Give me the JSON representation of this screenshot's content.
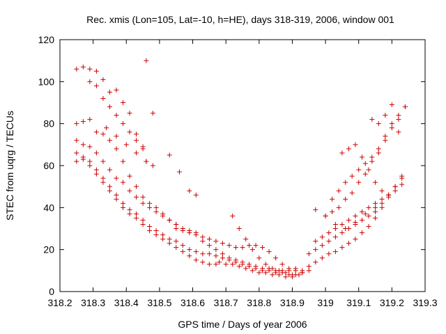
{
  "chart_data": {
    "type": "scatter",
    "title": "Rec. xmis (Lon=105, Lat=-10, h=HE), days 318-319, 2006, window 001",
    "xlabel": "GPS time / Days of year 2006",
    "ylabel": "STEC from uqrg / TECUs",
    "xlim": [
      318.2,
      319.3
    ],
    "ylim": [
      0,
      120
    ],
    "x_ticks": [
      "318.2",
      "318.3",
      "318.4",
      "318.5",
      "318.6",
      "318.7",
      "318.8",
      "318.9",
      "319",
      "319.1",
      "319.2",
      "319.3"
    ],
    "y_ticks": [
      "0",
      "20",
      "40",
      "60",
      "80",
      "100",
      "120"
    ],
    "grid": false,
    "marker": "+",
    "color": "#cc0000",
    "series": [
      {
        "x": [
          318.25,
          318.27,
          318.29,
          318.31,
          318.33,
          318.35,
          318.37,
          318.39,
          318.41,
          318.43,
          318.45,
          318.46,
          318.48
        ],
        "y": [
          106,
          107,
          106,
          105,
          101,
          95,
          96,
          90,
          85,
          75,
          69,
          62,
          60
        ]
      },
      {
        "x": [
          318.25,
          318.27,
          318.29,
          318.31,
          318.33,
          318.35,
          318.37,
          318.39,
          318.41,
          318.43,
          318.45,
          318.47,
          318.49,
          318.51,
          318.53,
          318.55
        ],
        "y": [
          80,
          81,
          82,
          76,
          75,
          72,
          68,
          62,
          55,
          50,
          45,
          42,
          40,
          37,
          34,
          32
        ]
      },
      {
        "x": [
          318.25,
          318.27,
          318.29,
          318.31,
          318.33,
          318.35,
          318.37,
          318.39,
          318.41,
          318.43,
          318.45,
          318.47,
          318.49,
          318.51,
          318.53,
          318.55,
          318.57,
          318.59,
          318.61
        ],
        "y": [
          72,
          70,
          69,
          66,
          62,
          58,
          54,
          52,
          48,
          45,
          42,
          40,
          38,
          36,
          34,
          32,
          30,
          29,
          28
        ]
      },
      {
        "x": [
          318.25,
          318.27,
          318.29,
          318.31,
          318.33,
          318.35,
          318.37,
          318.39,
          318.41,
          318.43,
          318.45,
          318.47,
          318.49,
          318.51,
          318.53,
          318.55,
          318.57,
          318.59,
          318.61,
          318.63
        ],
        "y": [
          66,
          64,
          62,
          58,
          54,
          50,
          46,
          42,
          39,
          37,
          34,
          31,
          29,
          27,
          25,
          24,
          22,
          20,
          19,
          18
        ]
      },
      {
        "x": [
          318.25,
          318.27,
          318.29,
          318.31,
          318.33,
          318.35,
          318.37,
          318.39,
          318.41,
          318.43,
          318.45,
          318.47,
          318.49,
          318.51,
          318.53,
          318.55,
          318.57,
          318.59,
          318.61,
          318.63,
          318.65,
          318.67
        ],
        "y": [
          62,
          63,
          60,
          56,
          52,
          48,
          44,
          40,
          37,
          35,
          32,
          29,
          27,
          25,
          23,
          21,
          19,
          17,
          15,
          14,
          13,
          13
        ]
      },
      {
        "x": [
          318.29,
          318.31,
          318.33,
          318.35,
          318.37,
          318.39,
          318.41,
          318.43,
          318.45
        ],
        "y": [
          100,
          98,
          92,
          88,
          84,
          80,
          76,
          72,
          68
        ]
      },
      {
        "x": [
          318.34,
          318.37,
          318.4,
          318.43,
          318.46
        ],
        "y": [
          78,
          74,
          70,
          66,
          62
        ]
      },
      {
        "x": [
          318.46,
          318.48,
          318.53,
          318.56,
          318.59,
          318.61
        ],
        "y": [
          110,
          85,
          65,
          57,
          48,
          46
        ]
      },
      {
        "x": [
          318.55,
          318.57,
          318.59,
          318.61,
          318.63,
          318.65,
          318.67,
          318.69,
          318.71,
          318.73,
          318.75,
          318.77,
          318.79,
          318.81,
          318.83,
          318.85,
          318.87,
          318.89,
          318.91,
          318.93
        ],
        "y": [
          30,
          29,
          28,
          27,
          26,
          25,
          24,
          23,
          22,
          21,
          21,
          22,
          22,
          21,
          19,
          16,
          13,
          11,
          10,
          9
        ]
      },
      {
        "x": [
          318.63,
          318.65,
          318.67,
          318.69,
          318.71,
          318.73,
          318.75,
          318.77,
          318.79,
          318.81,
          318.83,
          318.85,
          318.87,
          318.89,
          318.91
        ],
        "y": [
          24,
          22,
          20,
          18,
          16,
          15,
          14,
          13,
          12,
          11,
          11,
          10,
          10,
          10,
          11
        ]
      },
      {
        "x": [
          318.65,
          318.67,
          318.69,
          318.71,
          318.73,
          318.75,
          318.77,
          318.79,
          318.81,
          318.83,
          318.85,
          318.87,
          318.89,
          318.91,
          318.93,
          318.95
        ],
        "y": [
          18,
          17,
          16,
          15,
          14,
          13,
          12,
          11,
          10,
          10,
          9,
          9,
          8,
          8,
          9,
          10
        ]
      },
      {
        "x": [
          318.68,
          318.7,
          318.72,
          318.74,
          318.76,
          318.78,
          318.8,
          318.82,
          318.84,
          318.86,
          318.88,
          318.9,
          318.92
        ],
        "y": [
          14,
          13,
          13,
          12,
          11,
          10,
          9,
          9,
          8,
          8,
          7,
          7,
          8
        ]
      },
      {
        "x": [
          318.72,
          318.74,
          318.76,
          318.78,
          318.8,
          318.82,
          318.84,
          318.86,
          318.88,
          318.9
        ],
        "y": [
          36,
          30,
          25,
          20,
          16,
          13,
          11,
          10,
          9,
          8
        ]
      },
      {
        "x": [
          318.93,
          318.95,
          318.97,
          318.99,
          319.01,
          319.03,
          319.05,
          319.07,
          319.09,
          319.11,
          319.13,
          319.15,
          319.17,
          319.19,
          319.21,
          319.23
        ],
        "y": [
          10,
          12,
          14,
          16,
          18,
          19,
          21,
          23,
          25,
          28,
          31,
          35,
          40,
          46,
          50,
          54
        ]
      },
      {
        "x": [
          318.95,
          318.97,
          318.99,
          319.01,
          319.03,
          319.05,
          319.07,
          319.09,
          319.11,
          319.13,
          319.15,
          319.17,
          319.19,
          319.21,
          319.23
        ],
        "y": [
          18,
          20,
          22,
          24,
          26,
          28,
          30,
          32,
          34,
          36,
          38,
          42,
          46,
          50,
          55
        ]
      },
      {
        "x": [
          318.97,
          318.99,
          319.01,
          319.03,
          319.05,
          319.07,
          319.09,
          319.11,
          319.13,
          319.15,
          319.17,
          319.19,
          319.21,
          319.23
        ],
        "y": [
          24,
          26,
          28,
          30,
          32,
          34,
          36,
          38,
          40,
          42,
          44,
          46,
          48,
          51
        ]
      },
      {
        "x": [
          319.0,
          319.02,
          319.04,
          319.06,
          319.08,
          319.1,
          319.12,
          319.14,
          319.16,
          319.18,
          319.2,
          319.22
        ],
        "y": [
          36,
          38,
          40,
          44,
          47,
          52,
          56,
          62,
          66,
          72,
          78,
          82
        ]
      },
      {
        "x": [
          319.02,
          319.04,
          319.06,
          319.08,
          319.1,
          319.12,
          319.14,
          319.16,
          319.18,
          319.2,
          319.22,
          319.24
        ],
        "y": [
          44,
          48,
          52,
          55,
          58,
          61,
          64,
          68,
          74,
          80,
          84,
          88
        ]
      },
      {
        "x": [
          319.05,
          319.07,
          319.09,
          319.11,
          319.13,
          319.15,
          319.17,
          319.19
        ],
        "y": [
          66,
          68,
          70,
          64,
          58,
          52,
          48,
          45
        ]
      },
      {
        "x": [
          318.97,
          319.0,
          319.03,
          319.06,
          319.09,
          319.12,
          319.15
        ],
        "y": [
          39,
          36,
          32,
          30,
          33,
          37,
          40
        ]
      },
      {
        "x": [
          319.14,
          319.16,
          319.18,
          319.2,
          319.22,
          319.24
        ],
        "y": [
          82,
          80,
          84,
          89,
          76,
          88
        ]
      }
    ]
  }
}
